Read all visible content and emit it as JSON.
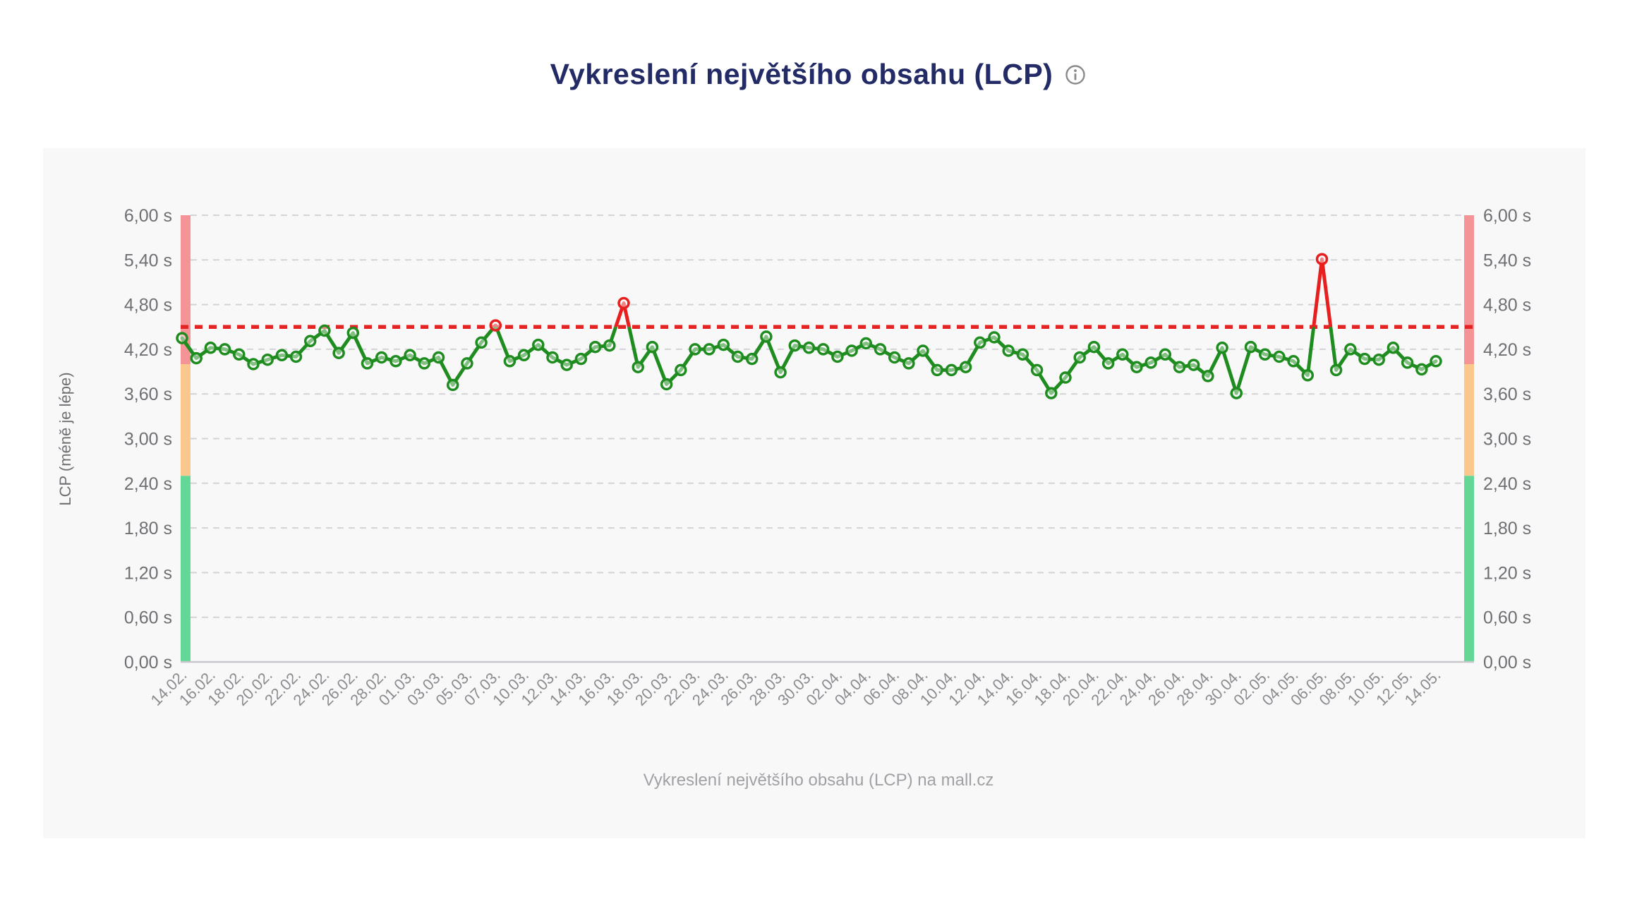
{
  "page": {
    "title": "Vykreslení největšího obsahu (LCP)",
    "info_icon": "info-circle",
    "caption": "Vykreslení největšího obsahu (LCP) na mall.cz"
  },
  "chart_data": {
    "type": "line",
    "title": "Vykreslení největšího obsahu (LCP)",
    "ylabel": "LCP (méně je lépe)",
    "xlabel": "",
    "ylim": [
      0,
      6
    ],
    "grid": true,
    "legend": "none",
    "y_ticks": [
      {
        "value": 0.0,
        "label": "0,00 s"
      },
      {
        "value": 0.6,
        "label": "0,60 s"
      },
      {
        "value": 1.2,
        "label": "1,20 s"
      },
      {
        "value": 1.8,
        "label": "1,80 s"
      },
      {
        "value": 2.4,
        "label": "2,40 s"
      },
      {
        "value": 3.0,
        "label": "3,00 s"
      },
      {
        "value": 3.6,
        "label": "3,60 s"
      },
      {
        "value": 4.2,
        "label": "4,20 s"
      },
      {
        "value": 4.8,
        "label": "4,80 s"
      },
      {
        "value": 5.4,
        "label": "5,40 s"
      },
      {
        "value": 6.0,
        "label": "6,00 s"
      }
    ],
    "x_tick_labels": [
      "14.02.",
      "16.02.",
      "18.02.",
      "20.02.",
      "22.02.",
      "24.02.",
      "26.02.",
      "28.02.",
      "01.03.",
      "03.03.",
      "05.03.",
      "07.03.",
      "10.03.",
      "12.03.",
      "14.03.",
      "16.03.",
      "18.03.",
      "20.03.",
      "22.03.",
      "24.03.",
      "26.03.",
      "28.03.",
      "30.03.",
      "02.04.",
      "04.04.",
      "06.04.",
      "08.04.",
      "10.04.",
      "12.04.",
      "14.04.",
      "16.04.",
      "18.04.",
      "20.04.",
      "22.04.",
      "24.04.",
      "26.04.",
      "28.04.",
      "30.04.",
      "02.05.",
      "04.05.",
      "06.05.",
      "08.05.",
      "10.05.",
      "12.05.",
      "14.05."
    ],
    "x": [
      "14.02.",
      "15.02.",
      "16.02.",
      "17.02.",
      "18.02.",
      "19.02.",
      "20.02.",
      "21.02.",
      "22.02.",
      "23.02.",
      "24.02.",
      "25.02.",
      "26.02.",
      "27.02.",
      "28.02.",
      "29.02.",
      "01.03.",
      "02.03.",
      "03.03.",
      "04.03.",
      "05.03.",
      "06.03.",
      "07.03.",
      "08.03.",
      "10.03.",
      "11.03.",
      "12.03.",
      "13.03.",
      "14.03.",
      "15.03.",
      "16.03.",
      "17.03.",
      "18.03.",
      "19.03.",
      "20.03.",
      "21.03.",
      "22.03.",
      "23.03.",
      "24.03.",
      "25.03.",
      "26.03.",
      "27.03.",
      "28.03.",
      "29.03.",
      "30.03.",
      "31.03.",
      "02.04.",
      "03.04.",
      "04.04.",
      "05.04.",
      "06.04.",
      "07.04.",
      "08.04.",
      "09.04.",
      "10.04.",
      "11.04.",
      "12.04.",
      "13.04.",
      "14.04.",
      "15.04.",
      "16.04.",
      "17.04.",
      "18.04.",
      "19.04.",
      "20.04.",
      "21.04.",
      "22.04.",
      "23.04.",
      "24.04.",
      "25.04.",
      "26.04.",
      "27.04.",
      "28.04.",
      "29.04.",
      "30.04.",
      "01.05.",
      "02.05.",
      "03.05.",
      "04.05.",
      "05.05.",
      "06.05.",
      "07.05.",
      "08.05.",
      "09.05.",
      "10.05.",
      "11.05.",
      "12.05.",
      "13.05.",
      "14.05."
    ],
    "series": [
      {
        "name": "LCP",
        "unit": "s",
        "values": [
          4.35,
          4.08,
          4.22,
          4.2,
          4.13,
          4.0,
          4.06,
          4.12,
          4.1,
          4.31,
          4.45,
          4.15,
          4.42,
          4.01,
          4.09,
          4.04,
          4.12,
          4.01,
          4.09,
          3.72,
          4.01,
          4.29,
          4.52,
          4.04,
          4.12,
          4.26,
          4.09,
          3.99,
          4.07,
          4.23,
          4.25,
          4.82,
          3.96,
          4.23,
          3.73,
          3.92,
          4.2,
          4.2,
          4.26,
          4.1,
          4.07,
          4.37,
          3.89,
          4.25,
          4.22,
          4.2,
          4.1,
          4.18,
          4.28,
          4.2,
          4.09,
          4.01,
          4.18,
          3.92,
          3.92,
          3.96,
          4.29,
          4.36,
          4.18,
          4.13,
          3.92,
          3.61,
          3.82,
          4.09,
          4.23,
          4.01,
          4.13,
          3.96,
          4.02,
          4.13,
          3.96,
          3.99,
          3.84,
          4.22,
          3.61,
          4.23,
          4.13,
          4.1,
          4.04,
          3.85,
          5.41,
          3.92,
          4.2,
          4.07,
          4.06,
          4.22,
          4.02,
          3.93,
          4.04
        ]
      }
    ],
    "threshold_line": {
      "value": 4.5,
      "color": "#e22424",
      "style": "dotted"
    },
    "bands": [
      {
        "from": 4.0,
        "to": 6.0,
        "color": "#f49496"
      },
      {
        "from": 2.5,
        "to": 4.0,
        "color": "#fac88c"
      },
      {
        "from": 0.0,
        "to": 2.5,
        "color": "#64d796"
      }
    ],
    "colors": {
      "line": "#1f8c1f",
      "above_threshold": "#e81f1f",
      "title": "#232b66",
      "card_background": "#f8f8f9",
      "tick_text": "#6f6f73"
    }
  }
}
